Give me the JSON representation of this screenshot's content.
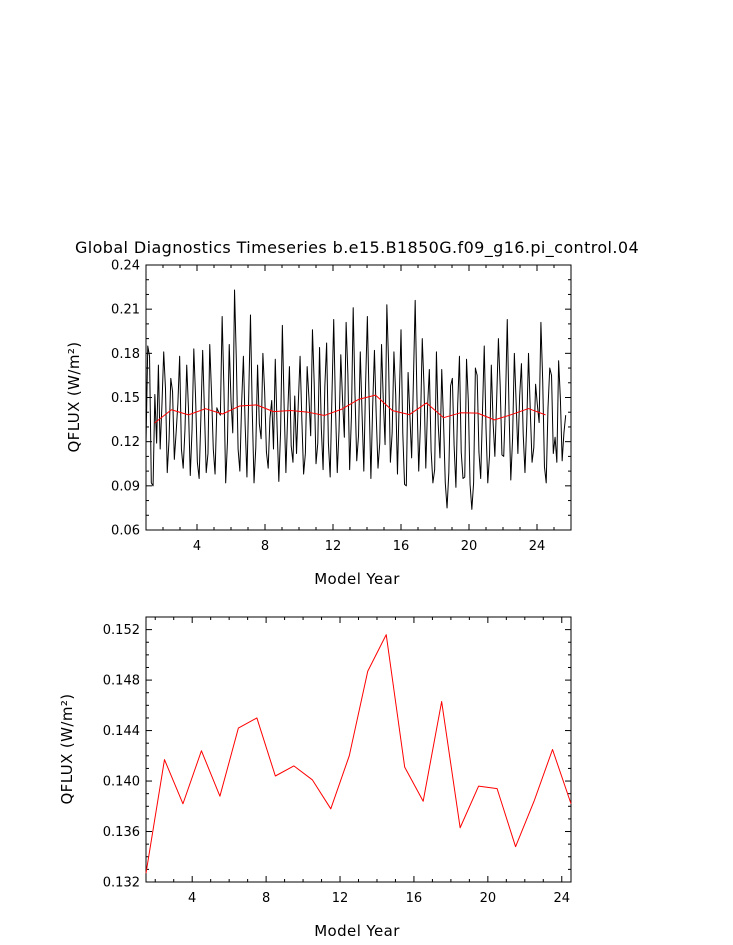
{
  "chart_data": [
    {
      "type": "line",
      "title": "Global Diagnostics Timeseries b.e15.B1850G.f09_g16.pi_control.04",
      "xlabel": "Model Year",
      "ylabel": "QFLUX (W/m²)",
      "xlim": [
        1,
        26
      ],
      "ylim": [
        0.06,
        0.24
      ],
      "xticks": [
        "4",
        "8",
        "12",
        "16",
        "20",
        "24"
      ],
      "yticks": [
        "0.06",
        "0.09",
        "0.12",
        "0.15",
        "0.18",
        "0.21",
        "0.24"
      ],
      "series": [
        {
          "color": "#000000",
          "values": [
            0.118,
            0.185,
            0.178,
            0.092,
            0.09,
            0.152,
            0.119,
            0.172,
            0.115,
            0.145,
            0.181,
            0.156,
            0.099,
            0.121,
            0.163,
            0.154,
            0.108,
            0.126,
            0.146,
            0.178,
            0.115,
            0.102,
            0.128,
            0.172,
            0.142,
            0.097,
            0.128,
            0.183,
            0.15,
            0.106,
            0.095,
            0.137,
            0.182,
            0.141,
            0.099,
            0.112,
            0.186,
            0.153,
            0.115,
            0.098,
            0.143,
            0.14,
            0.138,
            0.205,
            0.156,
            0.092,
            0.12,
            0.186,
            0.148,
            0.126,
            0.223,
            0.176,
            0.115,
            0.1,
            0.146,
            0.178,
            0.131,
            0.096,
            0.151,
            0.206,
            0.141,
            0.092,
            0.116,
            0.172,
            0.132,
            0.122,
            0.18,
            0.154,
            0.113,
            0.102,
            0.136,
            0.148,
            0.115,
            0.176,
            0.131,
            0.093,
            0.127,
            0.199,
            0.144,
            0.099,
            0.138,
            0.171,
            0.117,
            0.106,
            0.151,
            0.112,
            0.146,
            0.178,
            0.135,
            0.098,
            0.112,
            0.171,
            0.15,
            0.124,
            0.196,
            0.159,
            0.105,
            0.119,
            0.184,
            0.129,
            0.101,
            0.158,
            0.187,
            0.119,
            0.096,
            0.151,
            0.203,
            0.143,
            0.099,
            0.128,
            0.179,
            0.148,
            0.123,
            0.201,
            0.166,
            0.101,
            0.137,
            0.211,
            0.153,
            0.107,
            0.124,
            0.181,
            0.139,
            0.1,
            0.159,
            0.205,
            0.148,
            0.095,
            0.144,
            0.182,
            0.138,
            0.102,
            0.119,
            0.186,
            0.148,
            0.118,
            0.213,
            0.173,
            0.106,
            0.126,
            0.181,
            0.152,
            0.098,
            0.148,
            0.196,
            0.126,
            0.091,
            0.09,
            0.167,
            0.138,
            0.109,
            0.161,
            0.216,
            0.15,
            0.1,
            0.132,
            0.19,
            0.157,
            0.102,
            0.144,
            0.169,
            0.114,
            0.092,
            0.101,
            0.181,
            0.132,
            0.109,
            0.169,
            0.134,
            0.092,
            0.075,
            0.099,
            0.158,
            0.163,
            0.117,
            0.089,
            0.145,
            0.178,
            0.113,
            0.095,
            0.096,
            0.176,
            0.148,
            0.091,
            0.074,
            0.092,
            0.17,
            0.165,
            0.113,
            0.095,
            0.14,
            0.185,
            0.129,
            0.092,
            0.111,
            0.172,
            0.133,
            0.11,
            0.148,
            0.19,
            0.158,
            0.111,
            0.11,
            0.147,
            0.203,
            0.141,
            0.094,
            0.122,
            0.18,
            0.147,
            0.112,
            0.151,
            0.173,
            0.125,
            0.099,
            0.132,
            0.18,
            0.141,
            0.106,
            0.116,
            0.159,
            0.145,
            0.133,
            0.201,
            0.162,
            0.103,
            0.092,
            0.143,
            0.17,
            0.165,
            0.112,
            0.123,
            0.106,
            0.175,
            0.149,
            0.107,
            0.126,
            0.138
          ],
          "x_start": 1.0,
          "x_step": 0.10417
        },
        {
          "color": "#ff0000",
          "x": [
            1.5,
            2.5,
            3.5,
            4.5,
            5.5,
            6.5,
            7.5,
            8.5,
            9.5,
            10.5,
            11.5,
            12.5,
            13.5,
            14.5,
            15.5,
            16.5,
            17.5,
            18.5,
            19.5,
            20.5,
            21.5,
            22.5,
            23.5,
            24.5
          ],
          "values": [
            0.1327,
            0.1417,
            0.1382,
            0.1424,
            0.1388,
            0.1442,
            0.145,
            0.1404,
            0.1412,
            0.1401,
            0.1378,
            0.142,
            0.1487,
            0.1516,
            0.1411,
            0.1384,
            0.1463,
            0.1363,
            0.1396,
            0.1394,
            0.1348,
            0.1384,
            0.1425,
            0.1382
          ]
        }
      ]
    },
    {
      "type": "line",
      "title": "",
      "xlabel": "Model Year",
      "ylabel": "QFLUX (W/m²)",
      "xlim": [
        1.5,
        24.5
      ],
      "ylim": [
        0.132,
        0.153
      ],
      "xticks": [
        "4",
        "8",
        "12",
        "16",
        "20",
        "24"
      ],
      "yticks": [
        "0.132",
        "0.136",
        "0.140",
        "0.144",
        "0.148",
        "0.152"
      ],
      "series": [
        {
          "color": "#ff0000",
          "x": [
            1.5,
            2.5,
            3.5,
            4.5,
            5.5,
            6.5,
            7.5,
            8.5,
            9.5,
            10.5,
            11.5,
            12.5,
            13.5,
            14.5,
            15.5,
            16.5,
            17.5,
            18.5,
            19.5,
            20.5,
            21.5,
            22.5,
            23.5,
            24.5
          ],
          "values": [
            0.1327,
            0.1417,
            0.1382,
            0.1424,
            0.1388,
            0.1442,
            0.145,
            0.1404,
            0.1412,
            0.1401,
            0.1378,
            0.142,
            0.1487,
            0.1516,
            0.1411,
            0.1384,
            0.1463,
            0.1363,
            0.1396,
            0.1394,
            0.1348,
            0.1384,
            0.1425,
            0.1382
          ]
        }
      ]
    }
  ]
}
